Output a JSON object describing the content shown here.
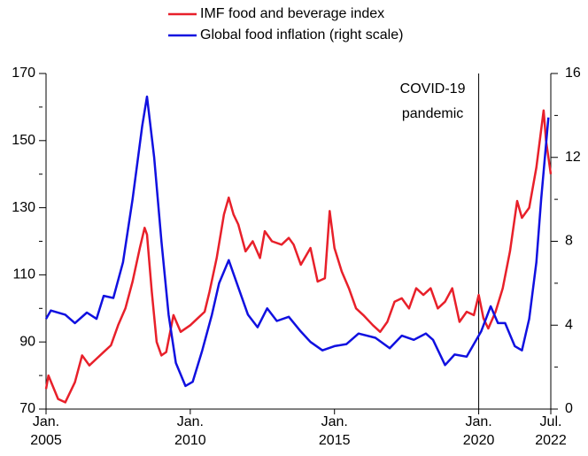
{
  "chart_data": {
    "type": "line",
    "legend_position": "top",
    "xlim": [
      "2005-01",
      "2022-07"
    ],
    "xticks": [
      {
        "value": "2005-01",
        "label": "Jan. 2005"
      },
      {
        "value": "2010-01",
        "label": "Jan. 2010"
      },
      {
        "value": "2015-01",
        "label": "Jan. 2015"
      },
      {
        "value": "2020-01",
        "label": "Jan. 2020"
      },
      {
        "value": "2022-07",
        "label": "Jul. 2022"
      }
    ],
    "ylim": [
      70,
      170
    ],
    "yticks": [
      70,
      90,
      110,
      130,
      150,
      170
    ],
    "yminorticks": [
      80,
      100,
      120,
      140,
      160
    ],
    "y2lim": [
      0,
      16
    ],
    "y2ticks": [
      0,
      4,
      8,
      12,
      16
    ],
    "y2minorticks": [
      2,
      6,
      10,
      14
    ],
    "annotations": [
      {
        "text": "COVID-19 pandemic",
        "x": "2020-01"
      }
    ],
    "series": [
      {
        "name": "IMF food and beverage index",
        "color": "#e8202a",
        "axis": "y",
        "x": [
          "2005-01",
          "2005-02",
          "2005-06",
          "2005-09",
          "2006-01",
          "2006-04",
          "2006-07",
          "2006-10",
          "2007-01",
          "2007-04",
          "2007-07",
          "2007-10",
          "2008-01",
          "2008-04",
          "2008-06",
          "2008-07",
          "2008-09",
          "2008-11",
          "2009-01",
          "2009-03",
          "2009-06",
          "2009-09",
          "2010-01",
          "2010-04",
          "2010-07",
          "2010-09",
          "2010-12",
          "2011-03",
          "2011-05",
          "2011-07",
          "2011-09",
          "2011-12",
          "2012-03",
          "2012-06",
          "2012-08",
          "2012-11",
          "2013-03",
          "2013-06",
          "2013-08",
          "2013-11",
          "2014-03",
          "2014-06",
          "2014-09",
          "2014-11",
          "2015-01",
          "2015-04",
          "2015-07",
          "2015-10",
          "2016-01",
          "2016-05",
          "2016-08",
          "2016-11",
          "2017-02",
          "2017-05",
          "2017-08",
          "2017-11",
          "2018-02",
          "2018-05",
          "2018-08",
          "2018-11",
          "2019-02",
          "2019-05",
          "2019-08",
          "2019-11",
          "2020-01",
          "2020-03",
          "2020-05",
          "2020-08",
          "2020-11",
          "2021-02",
          "2021-05",
          "2021-07",
          "2021-10",
          "2022-01",
          "2022-04",
          "2022-05",
          "2022-07"
        ],
        "values": [
          76,
          80,
          73,
          72,
          78,
          86,
          83,
          85,
          87,
          89,
          95,
          100,
          108,
          118,
          124,
          122,
          105,
          90,
          86,
          87,
          98,
          93,
          95,
          97,
          99,
          105,
          115,
          128,
          133,
          128,
          125,
          117,
          120,
          115,
          123,
          120,
          119,
          121,
          119,
          113,
          118,
          108,
          109,
          129,
          118,
          111,
          106,
          100,
          98,
          95,
          93,
          96,
          102,
          103,
          100,
          106,
          104,
          106,
          100,
          102,
          106,
          96,
          99,
          98,
          104,
          97,
          94,
          99,
          106,
          117,
          132,
          127,
          130,
          142,
          159,
          150,
          140
        ]
      },
      {
        "name": "Global food inflation (right scale)",
        "color": "#1010e0",
        "axis": "y2",
        "x": [
          "2005-01",
          "2005-03",
          "2005-09",
          "2006-01",
          "2006-06",
          "2006-10",
          "2007-01",
          "2007-05",
          "2007-09",
          "2008-01",
          "2008-05",
          "2008-07",
          "2008-10",
          "2009-01",
          "2009-04",
          "2009-07",
          "2009-11",
          "2010-02",
          "2010-06",
          "2010-10",
          "2011-01",
          "2011-05",
          "2011-09",
          "2012-01",
          "2012-05",
          "2012-09",
          "2013-01",
          "2013-06",
          "2013-11",
          "2014-03",
          "2014-08",
          "2015-01",
          "2015-06",
          "2015-11",
          "2016-06",
          "2016-12",
          "2017-05",
          "2017-10",
          "2018-03",
          "2018-06",
          "2018-11",
          "2019-03",
          "2019-08",
          "2019-11",
          "2020-02",
          "2020-06",
          "2020-09",
          "2020-12",
          "2021-04",
          "2021-07",
          "2021-10",
          "2022-01",
          "2022-03",
          "2022-06"
        ],
        "values": [
          4.3,
          4.7,
          4.5,
          4.1,
          4.6,
          4.3,
          5.4,
          5.3,
          7,
          10,
          13.5,
          14.9,
          12,
          8,
          4.5,
          2.2,
          1.1,
          1.3,
          2.8,
          4.5,
          6,
          7.1,
          5.8,
          4.5,
          3.9,
          4.8,
          4.2,
          4.4,
          3.7,
          3.2,
          2.8,
          3,
          3.1,
          3.6,
          3.4,
          2.9,
          3.5,
          3.3,
          3.6,
          3.3,
          2.1,
          2.6,
          2.5,
          3.1,
          3.7,
          4.9,
          4.1,
          4.1,
          3,
          2.8,
          4.3,
          7,
          10,
          13.9
        ]
      }
    ]
  }
}
